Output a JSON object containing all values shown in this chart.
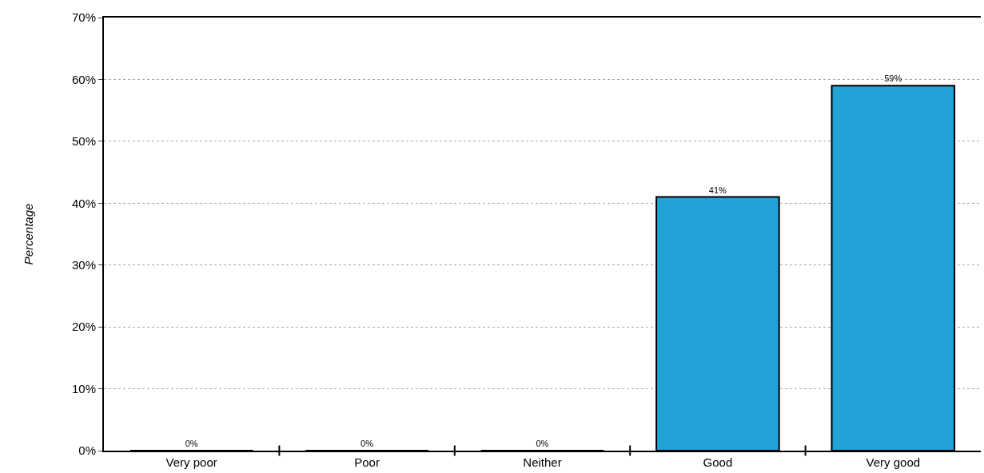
{
  "chart_data": {
    "type": "bar",
    "ylabel": "Percentage",
    "categories": [
      "Very poor",
      "Poor",
      "Neither",
      "Good",
      "Very good"
    ],
    "values": [
      0,
      0,
      0,
      41,
      59
    ],
    "value_labels": [
      "0%",
      "0%",
      "0%",
      "41%",
      "59%"
    ],
    "color": "#22a3d8",
    "ylim": [
      0,
      70
    ],
    "yticks": [
      {
        "value": 0,
        "label": "0%"
      },
      {
        "value": 10,
        "label": "10%"
      },
      {
        "value": 20,
        "label": "20%"
      },
      {
        "value": 30,
        "label": "30%"
      },
      {
        "value": 40,
        "label": "40%"
      },
      {
        "value": 50,
        "label": "50%"
      },
      {
        "value": 60,
        "label": "60%"
      },
      {
        "value": 70,
        "label": "70%"
      }
    ],
    "grid": "y"
  }
}
